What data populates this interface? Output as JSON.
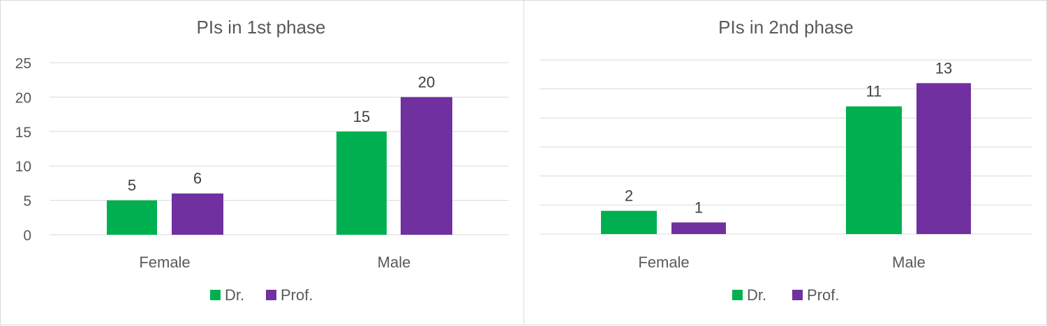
{
  "colors": {
    "Dr.": "#00b050",
    "Prof.": "#7030a0"
  },
  "chart_data": [
    {
      "type": "bar",
      "title": "PIs in 1st phase",
      "categories": [
        "Female",
        "Male"
      ],
      "series": [
        {
          "name": "Dr.",
          "values": [
            5,
            15
          ]
        },
        {
          "name": "Prof.",
          "values": [
            6,
            20
          ]
        }
      ],
      "ylim": [
        0,
        25
      ],
      "yticks": [
        0,
        5,
        10,
        15,
        20,
        25
      ],
      "show_yaxis_labels": true,
      "grid": true,
      "legend": "bottom"
    },
    {
      "type": "bar",
      "title": "PIs in 2nd phase",
      "categories": [
        "Female",
        "Male"
      ],
      "series": [
        {
          "name": "Dr.",
          "values": [
            2,
            11
          ]
        },
        {
          "name": "Prof.",
          "values": [
            1,
            13
          ]
        }
      ],
      "ylim": [
        0,
        15
      ],
      "yticks": [
        0,
        2.5,
        5,
        7.5,
        10,
        12.5,
        15
      ],
      "show_yaxis_labels": false,
      "grid": true,
      "legend": "bottom"
    }
  ]
}
